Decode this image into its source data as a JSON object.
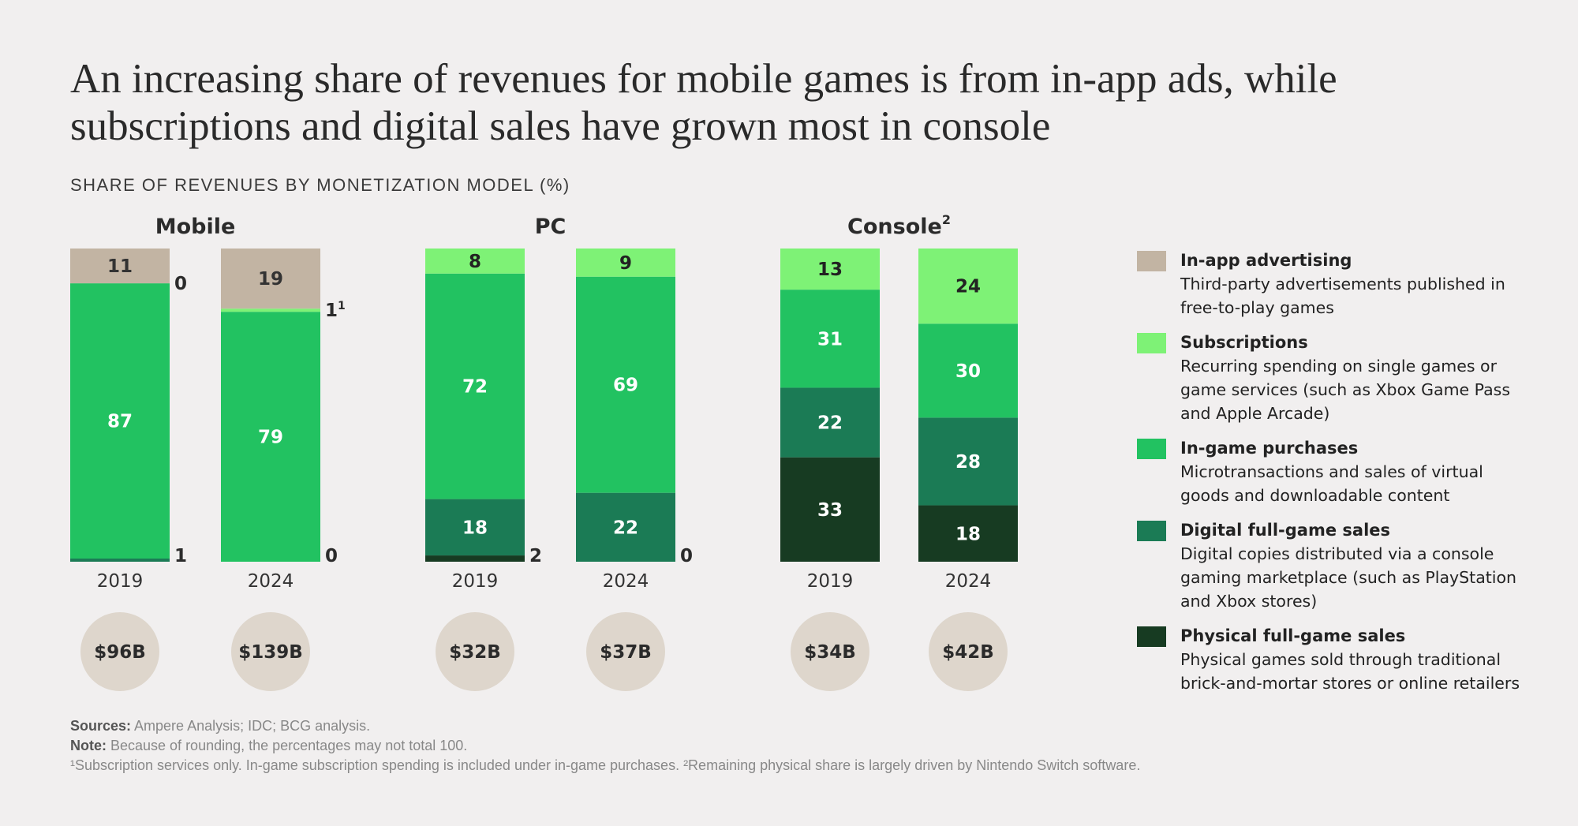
{
  "title": "An increasing share of revenues for mobile games is from in-app ads, while subscriptions and digital sales have grown most in console",
  "subtitle": "SHARE OF REVENUES BY MONETIZATION MODEL (%)",
  "colors": {
    "in_app_advertising": "#c2b4a3",
    "subscriptions": "#7ef276",
    "in_game_purchases": "#22c261",
    "digital_full_game": "#1b7b55",
    "physical_full_game": "#173b22",
    "revenue_circle": "#ded6cc"
  },
  "legend": [
    {
      "key": "in_app_advertising",
      "name": "In-app advertising",
      "desc_lines": [
        "Third-party advertisements published in",
        "free-to-play games"
      ]
    },
    {
      "key": "subscriptions",
      "name": "Subscriptions",
      "desc_lines": [
        "Recurring spending on single games or",
        "game services (such as Xbox Game Pass",
        "and Apple Arcade)"
      ]
    },
    {
      "key": "in_game_purchases",
      "name": "In-game purchases",
      "desc_lines": [
        "Microtransactions and sales of virtual",
        "goods and downloadable content"
      ]
    },
    {
      "key": "digital_full_game",
      "name": "Digital full-game sales",
      "desc_lines": [
        "Digital copies distributed via a console",
        "gaming marketplace (such as PlayStation",
        "and Xbox stores)"
      ]
    },
    {
      "key": "physical_full_game",
      "name": "Physical full-game sales",
      "desc_lines": [
        "Physical games sold through traditional",
        "brick-and-mortar stores or online retailers"
      ]
    }
  ],
  "chart_data": {
    "type": "bar",
    "stacked": true,
    "unit": "%",
    "segment_order_bottom_to_top": [
      "physical_full_game",
      "digital_full_game",
      "in_game_purchases",
      "subscriptions",
      "in_app_advertising"
    ],
    "groups": [
      {
        "name": "Mobile",
        "superscript": "",
        "bars": [
          {
            "year": "2019",
            "revenue": "$96B",
            "segments": {
              "physical_full_game": 0,
              "digital_full_game": 1,
              "in_game_purchases": 87,
              "subscriptions": 0,
              "in_app_advertising": 11
            },
            "inside_labels": {
              "in_game_purchases": "87",
              "in_app_advertising": "11"
            },
            "side_labels": [
              {
                "segment": "digital_full_game",
                "text": "1",
                "sup": ""
              },
              {
                "segment": "subscriptions",
                "text": "0",
                "sup": ""
              }
            ]
          },
          {
            "year": "2024",
            "revenue": "$139B",
            "segments": {
              "physical_full_game": 0,
              "digital_full_game": 0,
              "in_game_purchases": 79,
              "subscriptions": 1,
              "in_app_advertising": 19
            },
            "inside_labels": {
              "in_game_purchases": "79",
              "in_app_advertising": "19"
            },
            "side_labels": [
              {
                "segment": "digital_full_game",
                "text": "0",
                "sup": ""
              },
              {
                "segment": "subscriptions",
                "text": "1",
                "sup": "1"
              }
            ]
          }
        ]
      },
      {
        "name": "PC",
        "superscript": "",
        "bars": [
          {
            "year": "2019",
            "revenue": "$32B",
            "segments": {
              "physical_full_game": 2,
              "digital_full_game": 18,
              "in_game_purchases": 72,
              "subscriptions": 8,
              "in_app_advertising": 0
            },
            "inside_labels": {
              "digital_full_game": "18",
              "in_game_purchases": "72",
              "subscriptions": "8"
            },
            "side_labels": [
              {
                "segment": "physical_full_game",
                "text": "2",
                "sup": ""
              }
            ]
          },
          {
            "year": "2024",
            "revenue": "$37B",
            "segments": {
              "physical_full_game": 0,
              "digital_full_game": 22,
              "in_game_purchases": 69,
              "subscriptions": 9,
              "in_app_advertising": 0
            },
            "inside_labels": {
              "digital_full_game": "22",
              "in_game_purchases": "69",
              "subscriptions": "9"
            },
            "side_labels": [
              {
                "segment": "physical_full_game",
                "text": "0",
                "sup": ""
              }
            ]
          }
        ]
      },
      {
        "name": "Console",
        "superscript": "2",
        "bars": [
          {
            "year": "2019",
            "revenue": "$34B",
            "segments": {
              "physical_full_game": 33,
              "digital_full_game": 22,
              "in_game_purchases": 31,
              "subscriptions": 13,
              "in_app_advertising": 0
            },
            "inside_labels": {
              "physical_full_game": "33",
              "digital_full_game": "22",
              "in_game_purchases": "31",
              "subscriptions": "13"
            },
            "side_labels": []
          },
          {
            "year": "2024",
            "revenue": "$42B",
            "segments": {
              "physical_full_game": 18,
              "digital_full_game": 28,
              "in_game_purchases": 30,
              "subscriptions": 24,
              "in_app_advertising": 0
            },
            "inside_labels": {
              "physical_full_game": "18",
              "digital_full_game": "28",
              "in_game_purchases": "30",
              "subscriptions": "24"
            },
            "side_labels": []
          }
        ]
      }
    ]
  },
  "notes": {
    "sources_label": "Sources:",
    "sources_text": " Ampere Analysis; IDC; BCG analysis.",
    "note_label": "Note:",
    "note_text": " Because of rounding, the percentages may not total 100.",
    "footnotes": "¹Subscription services only. In-game subscription spending is included under in-game purchases. ²Remaining physical share is largely driven by Nintendo Switch software."
  }
}
